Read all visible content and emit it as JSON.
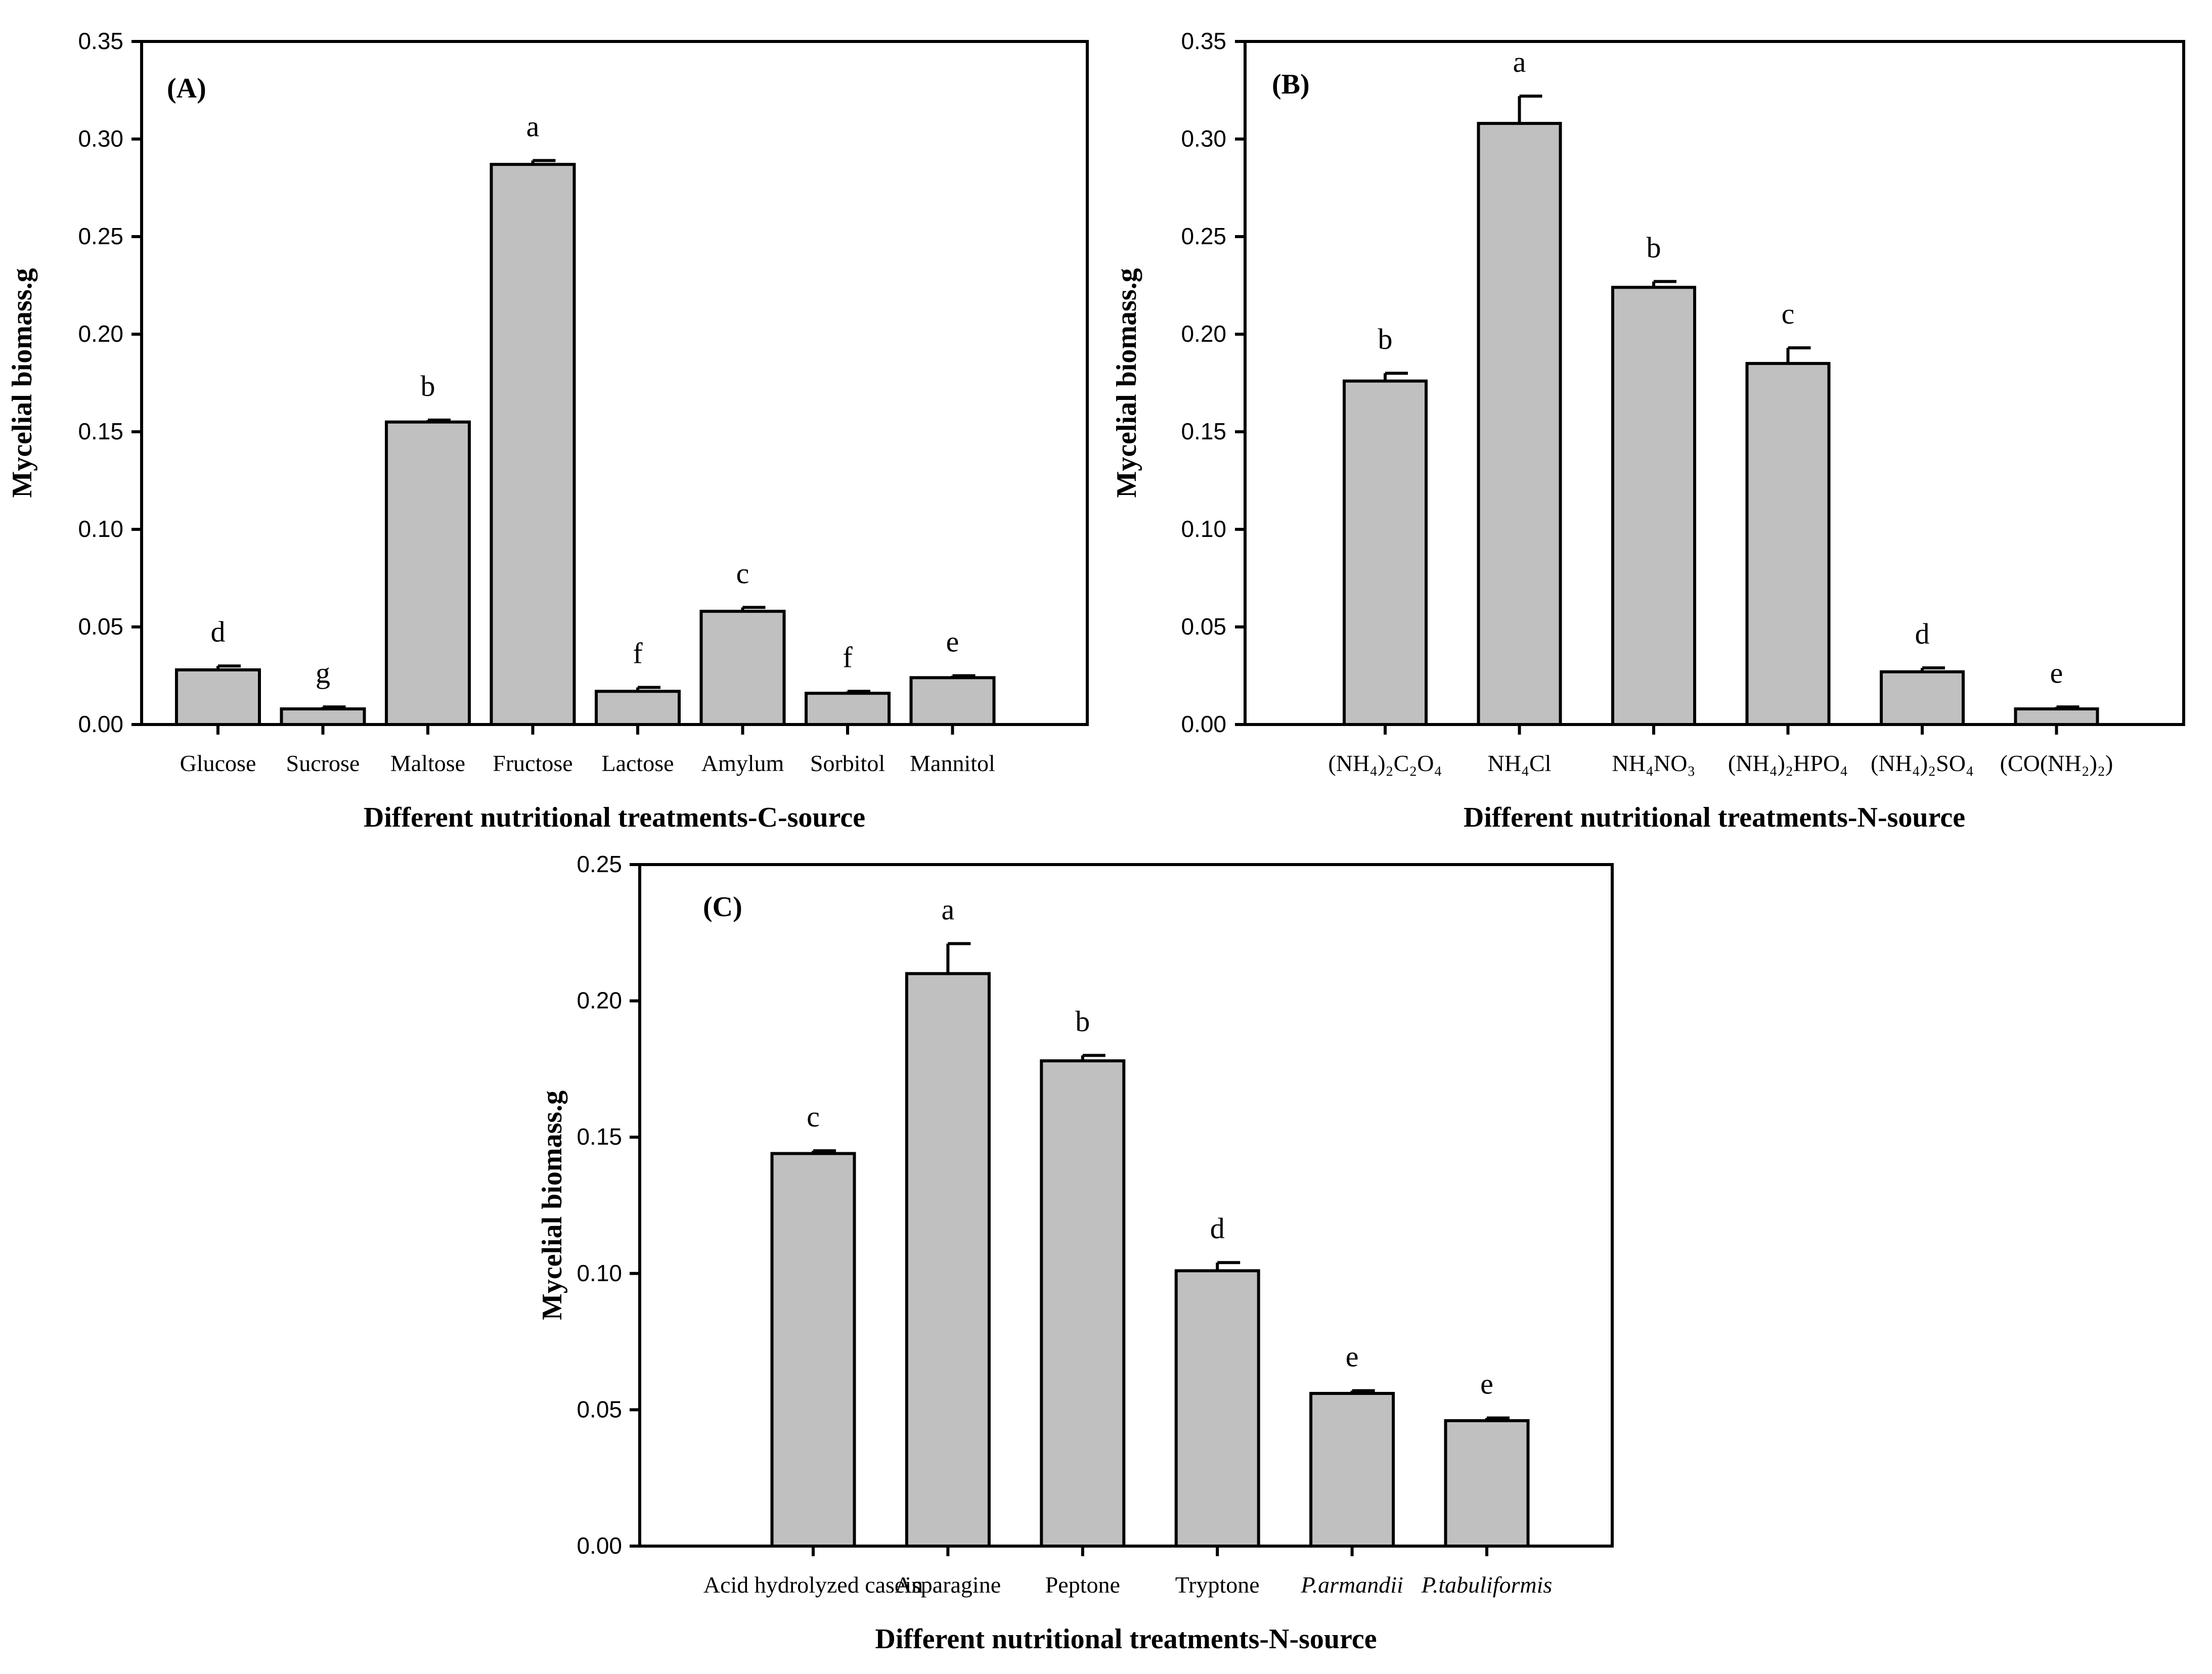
{
  "colors": {
    "bar_fill": "#c0c0c0",
    "stroke": "#000000",
    "background": "#ffffff"
  },
  "chart_data": [
    {
      "type": "bar",
      "panel_label": "(A)",
      "xlabel": "Different nutritional treatments-C-source",
      "ylabel": "Mycelial biomass.g",
      "ylim": [
        0,
        0.35
      ],
      "yticks": [
        0.0,
        0.05,
        0.1,
        0.15,
        0.2,
        0.25,
        0.3,
        0.35
      ],
      "ytick_labels": [
        "0.00",
        "0.05",
        "0.10",
        "0.15",
        "0.20",
        "0.25",
        "0.30",
        "0.35"
      ],
      "categories": [
        "Glucose",
        "Sucrose",
        "Maltose",
        "Fructose",
        "Lactose",
        "Amylum",
        "Sorbitol",
        "Mannitol"
      ],
      "values": [
        0.028,
        0.008,
        0.155,
        0.287,
        0.017,
        0.058,
        0.016,
        0.024
      ],
      "errors": [
        0.002,
        0.001,
        0.001,
        0.002,
        0.002,
        0.002,
        0.001,
        0.001
      ],
      "significance": [
        "d",
        "g",
        "b",
        "a",
        "f",
        "c",
        "f",
        "e"
      ]
    },
    {
      "type": "bar",
      "panel_label": "(B)",
      "xlabel": "Different nutritional treatments-N-source",
      "ylabel": "Mycelial biomass.g",
      "ylim": [
        0,
        0.35
      ],
      "yticks": [
        0.0,
        0.05,
        0.1,
        0.15,
        0.2,
        0.25,
        0.3,
        0.35
      ],
      "ytick_labels": [
        "0.00",
        "0.05",
        "0.10",
        "0.15",
        "0.20",
        "0.25",
        "0.30",
        "0.35"
      ],
      "categories": [
        "(NH₄)₂C₂O₄",
        "NH₄Cl",
        "NH₄NO₃",
        "(NH₄)₂HPO₄",
        "(NH₄)₂SO₄",
        "(CO(NH₂)₂)"
      ],
      "values": [
        0.176,
        0.308,
        0.224,
        0.185,
        0.027,
        0.008
      ],
      "errors": [
        0.004,
        0.014,
        0.003,
        0.008,
        0.002,
        0.001
      ],
      "significance": [
        "b",
        "a",
        "b",
        "c",
        "d",
        "e"
      ]
    },
    {
      "type": "bar",
      "panel_label": "(C)",
      "xlabel": "Different nutritional treatments-N-source",
      "ylabel": "Mycelial biomass.g",
      "ylim": [
        0,
        0.25
      ],
      "yticks": [
        0.0,
        0.05,
        0.1,
        0.15,
        0.2,
        0.25
      ],
      "ytick_labels": [
        "0.00",
        "0.05",
        "0.10",
        "0.15",
        "0.20",
        "0.25"
      ],
      "categories": [
        "Acid hydrolyzed casein",
        "Asparagine",
        "Peptone",
        "Tryptone",
        "P.armandii",
        "P.tabuliformis"
      ],
      "italic_categories": [
        false,
        false,
        false,
        false,
        true,
        true
      ],
      "values": [
        0.144,
        0.21,
        0.178,
        0.101,
        0.056,
        0.046
      ],
      "errors": [
        0.001,
        0.011,
        0.002,
        0.003,
        0.001,
        0.001
      ],
      "significance": [
        "c",
        "a",
        "b",
        "d",
        "e",
        "e"
      ]
    }
  ]
}
